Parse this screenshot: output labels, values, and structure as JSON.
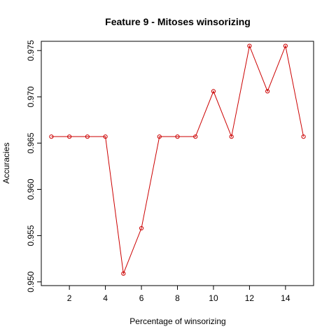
{
  "chart_data": {
    "type": "line",
    "title": "Feature 9 - Mitoses winsorizing",
    "xlabel": "Percentage of winsorizing",
    "ylabel": "Accuracies",
    "xlim": [
      0.44,
      15.56
    ],
    "ylim": [
      0.9496,
      0.976
    ],
    "x_ticks": [
      2,
      4,
      6,
      8,
      10,
      12,
      14
    ],
    "y_ticks": [
      0.95,
      0.955,
      0.96,
      0.965,
      0.97,
      0.975
    ],
    "y_tick_labels": [
      "0.950",
      "0.955",
      "0.960",
      "0.965",
      "0.970",
      "0.975"
    ],
    "grid": false,
    "series": [
      {
        "color": "#cc0000",
        "x": [
          1,
          2,
          3,
          4,
          5,
          6,
          7,
          8,
          9,
          10,
          11,
          12,
          13,
          14,
          15
        ],
        "values": [
          0.9657,
          0.9657,
          0.9657,
          0.9657,
          0.9509,
          0.9558,
          0.9657,
          0.9657,
          0.9657,
          0.9706,
          0.9657,
          0.9755,
          0.9706,
          0.9755,
          0.9657
        ]
      }
    ]
  }
}
